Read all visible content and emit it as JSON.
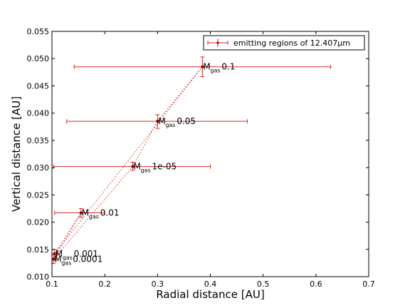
{
  "chart_data": {
    "type": "scatter",
    "xlabel": "Radial distance [AU]",
    "ylabel": "Vertical distance [AU]",
    "xlim": [
      0.1,
      0.7
    ],
    "ylim": [
      0.01,
      0.055
    ],
    "xticks": [
      "0.1",
      "0.2",
      "0.3",
      "0.4",
      "0.5",
      "0.6",
      "0.7"
    ],
    "yticks": [
      "0.010",
      "0.015",
      "0.020",
      "0.025",
      "0.030",
      "0.035",
      "0.040",
      "0.045",
      "0.050",
      "0.055"
    ],
    "grid": false,
    "legend": {
      "placement": "top-right",
      "entries": [
        "emitting regions of 12.407μm"
      ]
    },
    "series": [
      {
        "name": "emitting regions of 12.407μm",
        "color": "#d62728",
        "style": "errorbar-markers-dotted-line",
        "points": [
          {
            "label_main": "M",
            "label_sub": "gas",
            "label_value": "0.1",
            "x": 0.385,
            "y": 0.0485,
            "xerr_low": 0.142,
            "xerr_high": 0.628,
            "yerr_low": 0.0467,
            "yerr_high": 0.0503
          },
          {
            "label_main": "M",
            "label_sub": "gas",
            "label_value": "0.05",
            "x": 0.3,
            "y": 0.0385,
            "xerr_low": 0.128,
            "xerr_high": 0.47,
            "yerr_low": 0.0372,
            "yerr_high": 0.0397
          },
          {
            "label_main": "M",
            "label_sub": "gas",
            "label_value": "1e-05",
            "x": 0.253,
            "y": 0.0302,
            "xerr_low": 0.103,
            "xerr_high": 0.4,
            "yerr_low": 0.0295,
            "yerr_high": 0.031
          },
          {
            "label_main": "M",
            "label_sub": "gas",
            "label_value": "0.01",
            "x": 0.155,
            "y": 0.0217,
            "xerr_low": 0.105,
            "xerr_high": 0.2,
            "yerr_low": 0.0209,
            "yerr_high": 0.0225
          },
          {
            "label_main": "M",
            "label_sub": "gas",
            "label_value": "0.001",
            "x": 0.105,
            "y": 0.0142,
            "xerr_low": 0.1,
            "xerr_high": 0.11,
            "yerr_low": 0.0133,
            "yerr_high": 0.015
          },
          {
            "label_main": "M",
            "label_sub": "gas",
            "label_value": "0.0001",
            "x": 0.103,
            "y": 0.0132,
            "xerr_low": 0.1,
            "xerr_high": 0.108,
            "yerr_low": 0.0124,
            "yerr_high": 0.014
          }
        ]
      }
    ]
  }
}
